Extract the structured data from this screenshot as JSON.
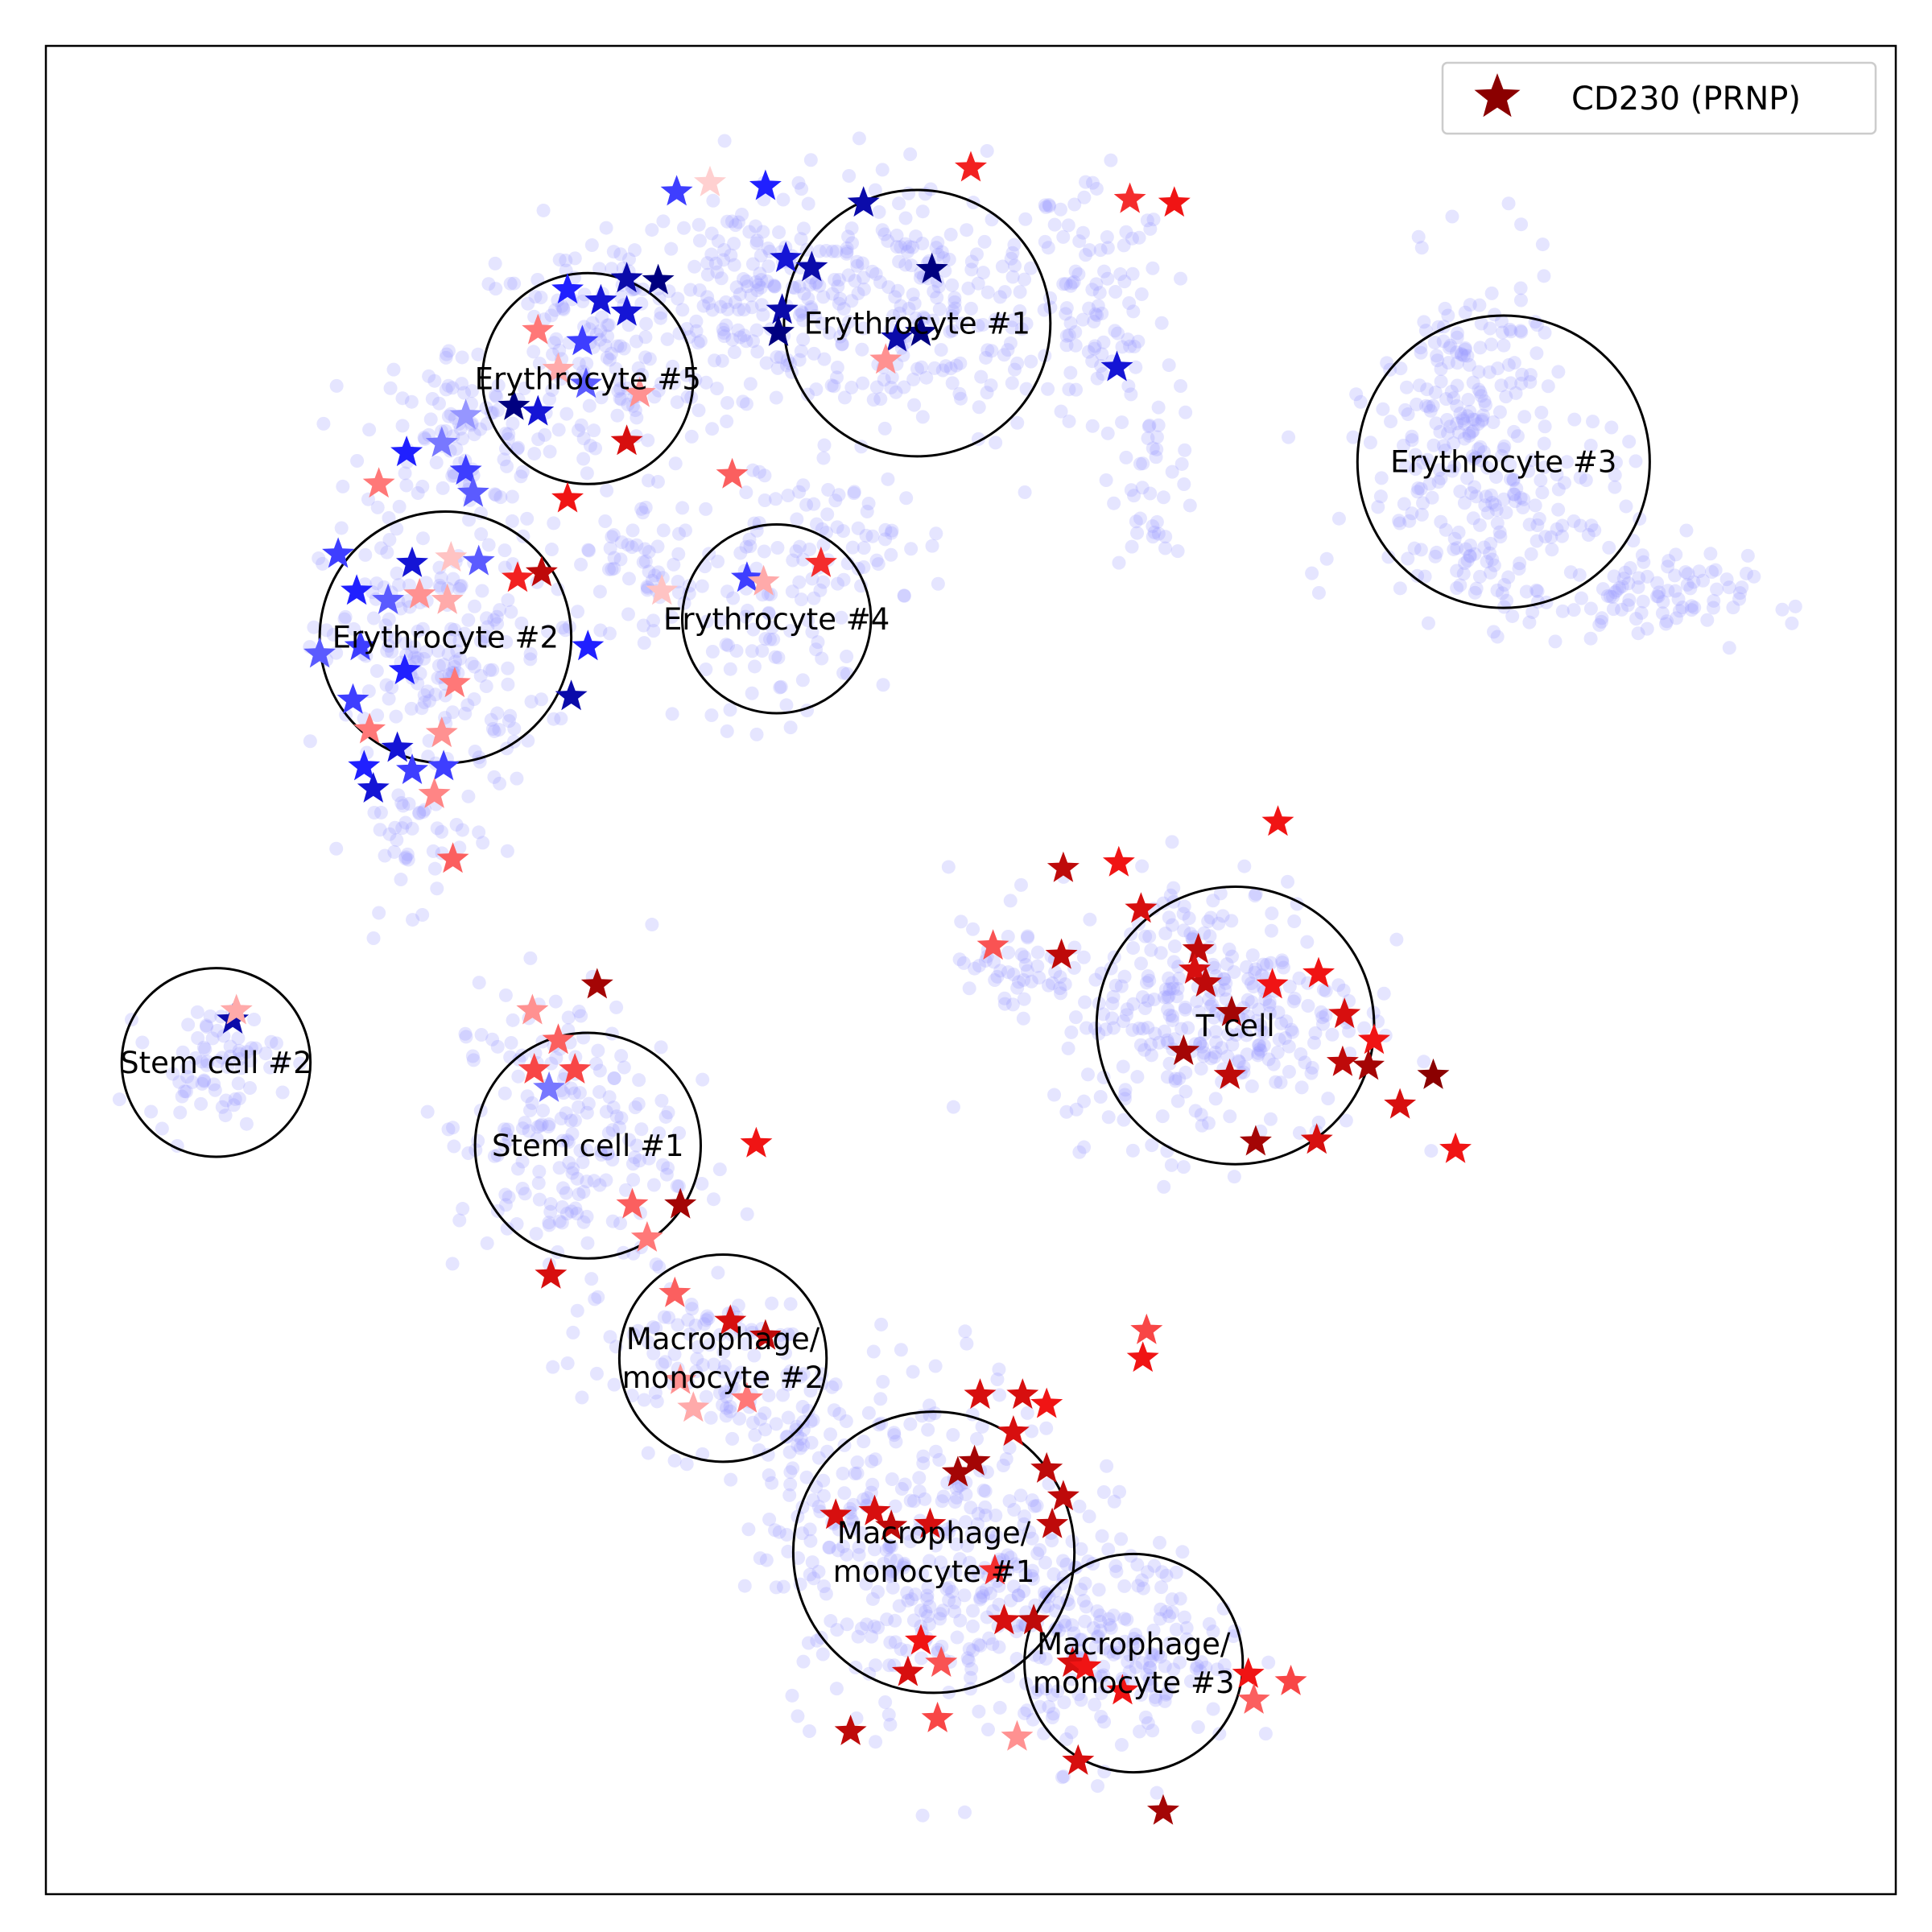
{
  "chart_data": {
    "type": "scatter",
    "title": "",
    "xlabel": "",
    "ylabel": "",
    "xlim": [
      0,
      100
    ],
    "ylim": [
      0,
      100
    ],
    "grid": false,
    "axis_ticks": false,
    "legend": {
      "placement": "top-right",
      "entries": [
        {
          "label": "CD230 (PRNP)",
          "marker": "star",
          "color": "#8b0000"
        }
      ]
    },
    "colors": {
      "background_points": "#9999ff",
      "marker_high": "#8b0000",
      "marker_mid_red": "#ff2020",
      "marker_neutral": "#ffd0d0",
      "marker_low": "#2020ff",
      "marker_lowest": "#000080",
      "circle_edge": "#000000"
    },
    "clusters": [
      {
        "label": "Erythrocyte #1",
        "x": 47.1,
        "y": 85.0,
        "r": 7.2
      },
      {
        "label": "Erythrocyte #2",
        "x": 21.6,
        "y": 68.0,
        "r": 6.8
      },
      {
        "label": "Erythrocyte #3",
        "x": 78.8,
        "y": 77.5,
        "r": 7.9
      },
      {
        "label": "Erythrocyte #4",
        "x": 39.5,
        "y": 69.0,
        "r": 5.1
      },
      {
        "label": "Erythrocyte #5",
        "x": 29.3,
        "y": 82.0,
        "r": 5.7
      },
      {
        "label": "Stem cell #2",
        "x": 9.2,
        "y": 45.0,
        "r": 5.1
      },
      {
        "label": "Stem cell #1",
        "x": 29.3,
        "y": 40.5,
        "r": 6.1
      },
      {
        "label": "T cell",
        "x": 64.3,
        "y": 47.0,
        "r": 7.5
      },
      {
        "label": "Macrophage/\nmonocyte #2",
        "x": 36.6,
        "y": 29.0,
        "r": 5.6
      },
      {
        "label": "Macrophage/\nmonocyte #1",
        "x": 48.0,
        "y": 18.5,
        "r": 7.6
      },
      {
        "label": "Macrophage/\nmonocyte #3",
        "x": 58.8,
        "y": 12.5,
        "r": 5.9
      }
    ],
    "stars": [
      {
        "x": 50.0,
        "y": 93.4,
        "v": 0.75
      },
      {
        "x": 58.6,
        "y": 91.7,
        "v": 0.7
      },
      {
        "x": 61.0,
        "y": 91.5,
        "v": 0.8
      },
      {
        "x": 44.2,
        "y": 91.5,
        "v": -0.9
      },
      {
        "x": 34.1,
        "y": 92.1,
        "v": -0.6
      },
      {
        "x": 35.9,
        "y": 92.6,
        "v": 0.05
      },
      {
        "x": 38.9,
        "y": 92.4,
        "v": -0.7
      },
      {
        "x": 40.0,
        "y": 88.5,
        "v": -0.8
      },
      {
        "x": 41.4,
        "y": 88.0,
        "v": -0.9
      },
      {
        "x": 47.9,
        "y": 87.9,
        "v": -1.0
      },
      {
        "x": 39.8,
        "y": 85.7,
        "v": -0.9
      },
      {
        "x": 39.6,
        "y": 84.5,
        "v": -1.0
      },
      {
        "x": 46.0,
        "y": 84.2,
        "v": -0.9
      },
      {
        "x": 47.3,
        "y": 84.5,
        "v": -1.0
      },
      {
        "x": 45.4,
        "y": 83.0,
        "v": 0.3
      },
      {
        "x": 57.9,
        "y": 82.6,
        "v": -0.8
      },
      {
        "x": 28.2,
        "y": 86.8,
        "v": -0.7
      },
      {
        "x": 30.0,
        "y": 86.2,
        "v": -0.8
      },
      {
        "x": 31.4,
        "y": 85.6,
        "v": -0.8
      },
      {
        "x": 33.1,
        "y": 87.3,
        "v": -1.0
      },
      {
        "x": 31.4,
        "y": 87.4,
        "v": -0.9
      },
      {
        "x": 26.6,
        "y": 84.6,
        "v": 0.4
      },
      {
        "x": 29.0,
        "y": 84.0,
        "v": -0.6
      },
      {
        "x": 27.7,
        "y": 82.5,
        "v": 0.2
      },
      {
        "x": 29.2,
        "y": 81.7,
        "v": -0.5
      },
      {
        "x": 32.1,
        "y": 81.2,
        "v": 0.3
      },
      {
        "x": 25.3,
        "y": 80.5,
        "v": -1.0
      },
      {
        "x": 26.6,
        "y": 80.2,
        "v": -0.8
      },
      {
        "x": 22.7,
        "y": 80.0,
        "v": -0.3
      },
      {
        "x": 21.4,
        "y": 78.5,
        "v": -0.4
      },
      {
        "x": 19.5,
        "y": 78.0,
        "v": -0.7
      },
      {
        "x": 22.7,
        "y": 77.0,
        "v": -0.6
      },
      {
        "x": 18.0,
        "y": 76.3,
        "v": 0.4
      },
      {
        "x": 23.1,
        "y": 75.8,
        "v": -0.5
      },
      {
        "x": 28.2,
        "y": 75.5,
        "v": 0.8
      },
      {
        "x": 31.4,
        "y": 78.6,
        "v": 0.85
      },
      {
        "x": 37.1,
        "y": 76.8,
        "v": 0.5
      },
      {
        "x": 15.8,
        "y": 72.5,
        "v": -0.6
      },
      {
        "x": 19.8,
        "y": 72.0,
        "v": -0.8
      },
      {
        "x": 21.9,
        "y": 72.3,
        "v": 0.1
      },
      {
        "x": 23.4,
        "y": 72.1,
        "v": -0.5
      },
      {
        "x": 25.5,
        "y": 71.2,
        "v": 0.75
      },
      {
        "x": 26.8,
        "y": 71.5,
        "v": 0.9
      },
      {
        "x": 16.8,
        "y": 70.5,
        "v": -0.7
      },
      {
        "x": 18.5,
        "y": 70.0,
        "v": -0.5
      },
      {
        "x": 20.2,
        "y": 70.3,
        "v": 0.3
      },
      {
        "x": 21.7,
        "y": 70.0,
        "v": 0.2
      },
      {
        "x": 33.3,
        "y": 70.5,
        "v": 0.1
      },
      {
        "x": 37.9,
        "y": 71.2,
        "v": -0.6
      },
      {
        "x": 38.8,
        "y": 71.0,
        "v": 0.2
      },
      {
        "x": 41.9,
        "y": 72.0,
        "v": 0.7
      },
      {
        "x": 14.8,
        "y": 67.1,
        "v": -0.5
      },
      {
        "x": 17.0,
        "y": 67.5,
        "v": -0.6
      },
      {
        "x": 19.4,
        "y": 66.2,
        "v": -0.7
      },
      {
        "x": 22.1,
        "y": 65.5,
        "v": 0.4
      },
      {
        "x": 29.3,
        "y": 67.5,
        "v": -0.7
      },
      {
        "x": 28.4,
        "y": 64.8,
        "v": -0.9
      },
      {
        "x": 16.6,
        "y": 64.6,
        "v": -0.6
      },
      {
        "x": 17.5,
        "y": 63.0,
        "v": 0.4
      },
      {
        "x": 19.0,
        "y": 62.0,
        "v": -0.8
      },
      {
        "x": 21.4,
        "y": 62.8,
        "v": 0.3
      },
      {
        "x": 17.2,
        "y": 61.0,
        "v": -0.7
      },
      {
        "x": 19.8,
        "y": 60.8,
        "v": -0.6
      },
      {
        "x": 21.5,
        "y": 61.0,
        "v": -0.6
      },
      {
        "x": 17.7,
        "y": 59.8,
        "v": -0.8
      },
      {
        "x": 21.0,
        "y": 59.5,
        "v": 0.35
      },
      {
        "x": 22.0,
        "y": 56.0,
        "v": 0.5
      },
      {
        "x": 66.6,
        "y": 58.0,
        "v": 0.8
      },
      {
        "x": 55.0,
        "y": 55.5,
        "v": 0.9
      },
      {
        "x": 58.0,
        "y": 55.8,
        "v": 0.8
      },
      {
        "x": 59.2,
        "y": 53.3,
        "v": 0.85
      },
      {
        "x": 51.2,
        "y": 51.3,
        "v": 0.55
      },
      {
        "x": 54.9,
        "y": 50.8,
        "v": 0.9
      },
      {
        "x": 62.3,
        "y": 51.1,
        "v": 0.9
      },
      {
        "x": 62.1,
        "y": 50.0,
        "v": 0.85
      },
      {
        "x": 62.7,
        "y": 49.3,
        "v": 0.9
      },
      {
        "x": 66.3,
        "y": 49.2,
        "v": 0.8
      },
      {
        "x": 68.8,
        "y": 49.8,
        "v": 0.8
      },
      {
        "x": 70.2,
        "y": 47.6,
        "v": 0.85
      },
      {
        "x": 64.1,
        "y": 47.7,
        "v": 0.95
      },
      {
        "x": 71.8,
        "y": 46.2,
        "v": 0.8
      },
      {
        "x": 61.5,
        "y": 45.6,
        "v": 0.95
      },
      {
        "x": 64.0,
        "y": 44.3,
        "v": 0.9
      },
      {
        "x": 70.1,
        "y": 45.0,
        "v": 0.9
      },
      {
        "x": 71.5,
        "y": 44.8,
        "v": 0.95
      },
      {
        "x": 75.0,
        "y": 44.3,
        "v": 1.0
      },
      {
        "x": 73.2,
        "y": 42.7,
        "v": 0.85
      },
      {
        "x": 65.4,
        "y": 40.7,
        "v": 0.95
      },
      {
        "x": 68.7,
        "y": 40.8,
        "v": 0.85
      },
      {
        "x": 76.2,
        "y": 40.3,
        "v": 0.8
      },
      {
        "x": 29.8,
        "y": 49.2,
        "v": 0.95
      },
      {
        "x": 26.3,
        "y": 47.8,
        "v": 0.3
      },
      {
        "x": 27.7,
        "y": 46.2,
        "v": 0.5
      },
      {
        "x": 26.4,
        "y": 44.6,
        "v": 0.6
      },
      {
        "x": 28.6,
        "y": 44.6,
        "v": 0.6
      },
      {
        "x": 27.2,
        "y": 43.6,
        "v": -0.4
      },
      {
        "x": 38.4,
        "y": 40.6,
        "v": 0.8
      },
      {
        "x": 31.7,
        "y": 37.3,
        "v": 0.5
      },
      {
        "x": 34.3,
        "y": 37.3,
        "v": 0.95
      },
      {
        "x": 32.5,
        "y": 35.5,
        "v": 0.4
      },
      {
        "x": 27.3,
        "y": 33.5,
        "v": 0.85
      },
      {
        "x": 34.0,
        "y": 32.5,
        "v": 0.5
      },
      {
        "x": 37.0,
        "y": 31.0,
        "v": 0.85
      },
      {
        "x": 38.9,
        "y": 30.2,
        "v": 0.9
      },
      {
        "x": 34.3,
        "y": 27.8,
        "v": 0.3
      },
      {
        "x": 37.9,
        "y": 26.8,
        "v": 0.4
      },
      {
        "x": 35.0,
        "y": 26.3,
        "v": 0.2
      },
      {
        "x": 59.5,
        "y": 30.5,
        "v": 0.6
      },
      {
        "x": 59.3,
        "y": 29.0,
        "v": 0.8
      },
      {
        "x": 50.5,
        "y": 27.0,
        "v": 0.85
      },
      {
        "x": 52.8,
        "y": 27.0,
        "v": 0.85
      },
      {
        "x": 54.1,
        "y": 26.5,
        "v": 0.8
      },
      {
        "x": 52.3,
        "y": 25.0,
        "v": 0.85
      },
      {
        "x": 49.3,
        "y": 22.8,
        "v": 0.95
      },
      {
        "x": 50.2,
        "y": 23.4,
        "v": 0.95
      },
      {
        "x": 54.1,
        "y": 23.0,
        "v": 0.9
      },
      {
        "x": 55.0,
        "y": 21.5,
        "v": 0.9
      },
      {
        "x": 42.7,
        "y": 20.5,
        "v": 0.85
      },
      {
        "x": 44.8,
        "y": 20.7,
        "v": 0.85
      },
      {
        "x": 45.7,
        "y": 19.9,
        "v": 0.9
      },
      {
        "x": 47.8,
        "y": 20.0,
        "v": 0.85
      },
      {
        "x": 54.4,
        "y": 20.0,
        "v": 0.9
      },
      {
        "x": 51.3,
        "y": 17.5,
        "v": 0.7
      },
      {
        "x": 51.8,
        "y": 14.8,
        "v": 0.85
      },
      {
        "x": 53.4,
        "y": 14.8,
        "v": 0.9
      },
      {
        "x": 47.3,
        "y": 13.7,
        "v": 0.8
      },
      {
        "x": 48.4,
        "y": 12.5,
        "v": 0.55
      },
      {
        "x": 46.6,
        "y": 12.0,
        "v": 0.85
      },
      {
        "x": 55.5,
        "y": 12.5,
        "v": 0.85
      },
      {
        "x": 56.2,
        "y": 12.3,
        "v": 0.8
      },
      {
        "x": 48.2,
        "y": 9.5,
        "v": 0.6
      },
      {
        "x": 43.5,
        "y": 8.8,
        "v": 0.9
      },
      {
        "x": 52.5,
        "y": 8.5,
        "v": 0.3
      },
      {
        "x": 55.8,
        "y": 7.2,
        "v": 0.85
      },
      {
        "x": 58.2,
        "y": 11.0,
        "v": 0.8
      },
      {
        "x": 65.0,
        "y": 11.9,
        "v": 0.8
      },
      {
        "x": 67.3,
        "y": 11.5,
        "v": 0.6
      },
      {
        "x": 65.3,
        "y": 10.5,
        "v": 0.5
      },
      {
        "x": 60.4,
        "y": 4.5,
        "v": 0.95
      },
      {
        "x": 10.1,
        "y": 47.3,
        "v": -0.9
      },
      {
        "x": 10.3,
        "y": 47.8,
        "v": 0.2
      }
    ]
  }
}
